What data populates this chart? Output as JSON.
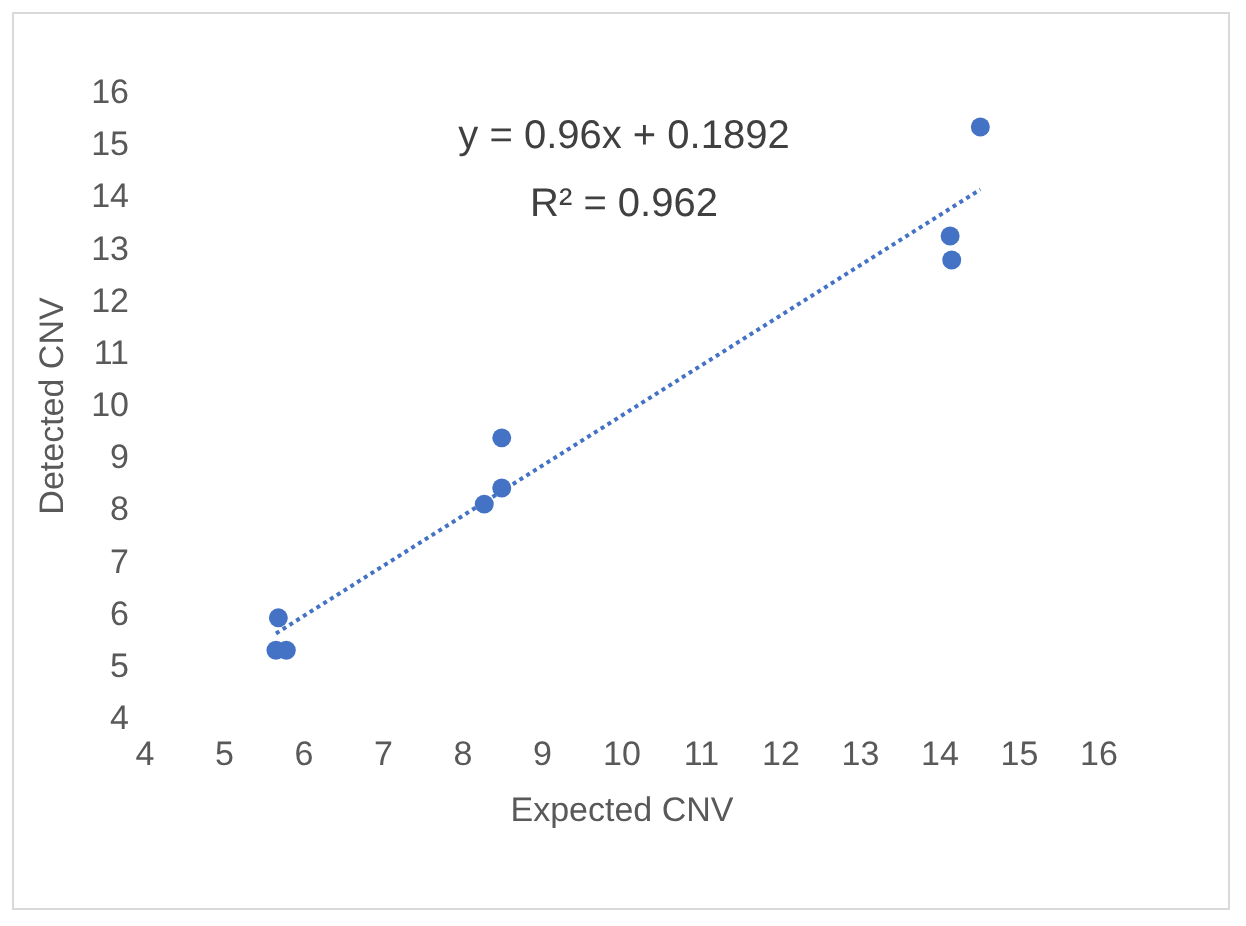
{
  "chart_data": {
    "type": "scatter",
    "xlabel": "Expected CNV",
    "ylabel": "Detected CNV",
    "annotations": [
      "y = 0.96x + 0.1892",
      "R² = 0.962"
    ],
    "xlim": [
      4,
      16
    ],
    "xticks": [
      4,
      5,
      6,
      7,
      8,
      9,
      10,
      11,
      12,
      13,
      14,
      15,
      16
    ],
    "ylim": [
      4,
      16
    ],
    "yticks": [
      4,
      5,
      6,
      7,
      8,
      9,
      10,
      11,
      12,
      13,
      14,
      15,
      16
    ],
    "grid": false,
    "marker": "circle",
    "series": [
      {
        "type": "scatter",
        "color": "#4472c4",
        "x": [
          14.52,
          14.14,
          14.16,
          8.5,
          8.5,
          8.28,
          5.69,
          5.66,
          5.79
        ],
        "values": [
          15.33,
          13.24,
          12.78,
          9.37,
          8.41,
          8.1,
          5.92,
          5.3,
          5.3
        ]
      },
      {
        "type": "line",
        "color": "#4472c4",
        "line_style": "dotted",
        "marker": "none",
        "x": [
          5.66,
          14.52
        ],
        "values": [
          5.62,
          14.13
        ]
      }
    ]
  }
}
